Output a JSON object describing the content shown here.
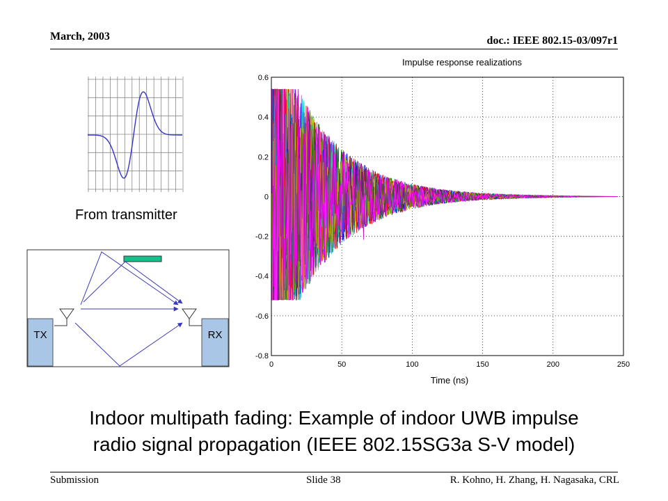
{
  "header": {
    "date": "March, 2003",
    "doc_id": "doc.: IEEE 802.15-03/097r1"
  },
  "pulse": {
    "caption": "From transmitter",
    "line_color": "#3333cc"
  },
  "diagram": {
    "tx_label": "TX",
    "rx_label": "RX",
    "box_color": "#a9c6e6",
    "reflector_color": "#16c08a",
    "arrow_color": "#3a3ab8"
  },
  "chart_data": {
    "type": "line",
    "title": "Impulse response realizations",
    "xlabel": "Time (ns)",
    "ylabel": "",
    "xlim": [
      0,
      250
    ],
    "ylim": [
      -0.8,
      0.6
    ],
    "x_ticks": [
      0,
      50,
      100,
      150,
      200,
      250
    ],
    "y_ticks": [
      0.6,
      0.4,
      0.2,
      0,
      -0.2,
      -0.4,
      -0.6,
      -0.8
    ],
    "grid": true,
    "peak_positive": 0.54,
    "peak_negative": -0.52,
    "decay_to_zero_ns": 200,
    "series_colors": [
      "#0000ff",
      "#008000",
      "#ff0000",
      "#00bfbf",
      "#bf00bf",
      "#bfbf00",
      "#404040",
      "#ff00ff"
    ]
  },
  "caption": {
    "line1": "Indoor multipath fading: Example of indoor UWB impulse",
    "line2": "radio signal propagation  (IEEE 802.15SG3a S-V model)"
  },
  "footer": {
    "left": "Submission",
    "center": "Slide 38",
    "right": "R. Kohno, H. Zhang, H. Nagasaka, CRL"
  }
}
